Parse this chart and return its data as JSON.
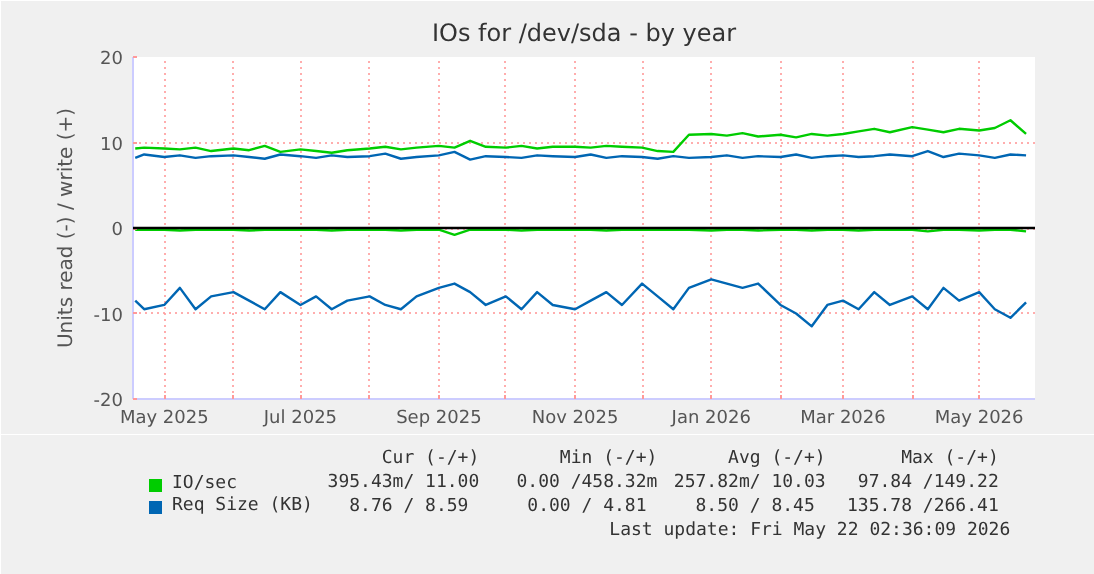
{
  "chart_data": {
    "type": "line",
    "title": "IOs for /dev/sda - by year",
    "ylabel": "Units read (-) / write (+)",
    "x": [
      "2025-04-18",
      "2025-04-22",
      "2025-05-01",
      "2025-05-08",
      "2025-05-15",
      "2025-05-22",
      "2025-06-01",
      "2025-06-08",
      "2025-06-15",
      "2025-06-22",
      "2025-07-01",
      "2025-07-08",
      "2025-07-15",
      "2025-07-22",
      "2025-08-01",
      "2025-08-08",
      "2025-08-15",
      "2025-08-22",
      "2025-09-01",
      "2025-09-08",
      "2025-09-15",
      "2025-09-22",
      "2025-10-01",
      "2025-10-08",
      "2025-10-15",
      "2025-10-22",
      "2025-11-01",
      "2025-11-08",
      "2025-11-15",
      "2025-11-22",
      "2025-12-01",
      "2025-12-08",
      "2025-12-15",
      "2025-12-22",
      "2026-01-01",
      "2026-01-08",
      "2026-01-15",
      "2026-01-22",
      "2026-02-01",
      "2026-02-08",
      "2026-02-15",
      "2026-02-22",
      "2026-03-01",
      "2026-03-08",
      "2026-03-15",
      "2026-03-22",
      "2026-04-01",
      "2026-04-08",
      "2026-04-15",
      "2026-04-22",
      "2026-05-01",
      "2026-05-08",
      "2026-05-15",
      "2026-05-22"
    ],
    "series": [
      {
        "color": "#00cc00",
        "values": [
          -0.2,
          -0.2,
          -0.2,
          -0.3,
          -0.2,
          -0.2,
          -0.2,
          -0.3,
          -0.2,
          -0.2,
          -0.2,
          -0.2,
          -0.3,
          -0.2,
          -0.2,
          -0.2,
          -0.3,
          -0.2,
          -0.2,
          -0.8,
          -0.2,
          -0.2,
          -0.2,
          -0.3,
          -0.2,
          -0.2,
          -0.2,
          -0.2,
          -0.3,
          -0.2,
          -0.2,
          -0.2,
          -0.2,
          -0.2,
          -0.3,
          -0.2,
          -0.2,
          -0.3,
          -0.2,
          -0.2,
          -0.3,
          -0.2,
          -0.2,
          -0.3,
          -0.2,
          -0.2,
          -0.2,
          -0.4,
          -0.2,
          -0.2,
          -0.3,
          -0.2,
          -0.2,
          -0.4
        ]
      },
      {
        "name": "IO/sec",
        "color": "#00cc00",
        "values": [
          9.3,
          9.4,
          9.3,
          9.2,
          9.4,
          9.0,
          9.3,
          9.1,
          9.6,
          8.9,
          9.2,
          9.0,
          8.8,
          9.1,
          9.3,
          9.5,
          9.2,
          9.4,
          9.6,
          9.4,
          10.2,
          9.5,
          9.4,
          9.6,
          9.3,
          9.5,
          9.5,
          9.4,
          9.6,
          9.5,
          9.4,
          9.0,
          8.9,
          10.9,
          11.0,
          10.8,
          11.1,
          10.7,
          10.9,
          10.6,
          11.0,
          10.8,
          11.0,
          11.3,
          11.6,
          11.2,
          11.8,
          11.5,
          11.2,
          11.6,
          11.4,
          11.7,
          12.6,
          11.0
        ]
      },
      {
        "color": "#0066b3",
        "values": [
          -8.5,
          -9.5,
          -9.0,
          -7.0,
          -9.5,
          -8.0,
          -7.5,
          -8.5,
          -9.5,
          -7.5,
          -9.0,
          -8.0,
          -9.5,
          -8.5,
          -8.0,
          -9.0,
          -9.5,
          -8.0,
          -7.0,
          -6.5,
          -7.5,
          -9.0,
          -8.0,
          -9.5,
          -7.5,
          -9.0,
          -9.5,
          -8.5,
          -7.5,
          -9.0,
          -6.5,
          -8.0,
          -9.5,
          -7.0,
          -6.0,
          -6.5,
          -7.0,
          -6.5,
          -9.0,
          -10.0,
          -11.5,
          -9.0,
          -8.5,
          -9.5,
          -7.5,
          -9.0,
          -8.0,
          -9.5,
          -7.0,
          -8.5,
          -7.5,
          -9.5,
          -10.5,
          -8.7
        ]
      },
      {
        "name": "Req Size (KB)",
        "color": "#0066b3",
        "values": [
          8.2,
          8.6,
          8.3,
          8.5,
          8.2,
          8.4,
          8.5,
          8.3,
          8.1,
          8.6,
          8.4,
          8.2,
          8.5,
          8.3,
          8.4,
          8.7,
          8.1,
          8.3,
          8.5,
          8.9,
          8.0,
          8.4,
          8.3,
          8.2,
          8.5,
          8.4,
          8.3,
          8.6,
          8.2,
          8.4,
          8.3,
          8.1,
          8.4,
          8.2,
          8.3,
          8.5,
          8.2,
          8.4,
          8.3,
          8.6,
          8.2,
          8.4,
          8.5,
          8.3,
          8.4,
          8.6,
          8.4,
          9.0,
          8.3,
          8.7,
          8.5,
          8.2,
          8.6,
          8.5
        ]
      }
    ],
    "xlim": [
      "2025-04-17",
      "2026-05-26"
    ],
    "xticks": [
      {
        "value": "2025-05-01",
        "label": "May 2025"
      },
      {
        "value": "2025-06-01",
        "label": null
      },
      {
        "value": "2025-07-01",
        "label": "Jul 2025"
      },
      {
        "value": "2025-08-01",
        "label": null
      },
      {
        "value": "2025-09-01",
        "label": "Sep 2025"
      },
      {
        "value": "2025-10-01",
        "label": null
      },
      {
        "value": "2025-11-01",
        "label": "Nov 2025"
      },
      {
        "value": "2025-12-01",
        "label": null
      },
      {
        "value": "2026-01-01",
        "label": "Jan 2026"
      },
      {
        "value": "2026-02-01",
        "label": null
      },
      {
        "value": "2026-03-01",
        "label": "Mar 2026"
      },
      {
        "value": "2026-04-01",
        "label": null
      },
      {
        "value": "2026-05-01",
        "label": "May 2026"
      }
    ],
    "ylim": [
      -20,
      20
    ],
    "yticks": [
      -20,
      -10,
      0,
      10,
      20
    ],
    "ref_lines": [
      {
        "axis": "y",
        "value": 0,
        "color": "#000000"
      }
    ],
    "grid": true,
    "legend": "bottom",
    "line_style": "solid",
    "marker": "none",
    "annotations": [
      "Cur (-/+)",
      "Min (-/+)",
      "Avg (-/+)",
      "Max (-/+)",
      "395.43m/ 11.00",
      "0.00 /458.32m",
      "257.82m/ 10.03",
      "97.84 /149.22",
      "8.76 /  8.59",
      "0.00 /  4.81",
      "8.50 /  8.45",
      "135.78 /266.41",
      "Last update: Fri May 22 02:36:09 2026"
    ]
  }
}
